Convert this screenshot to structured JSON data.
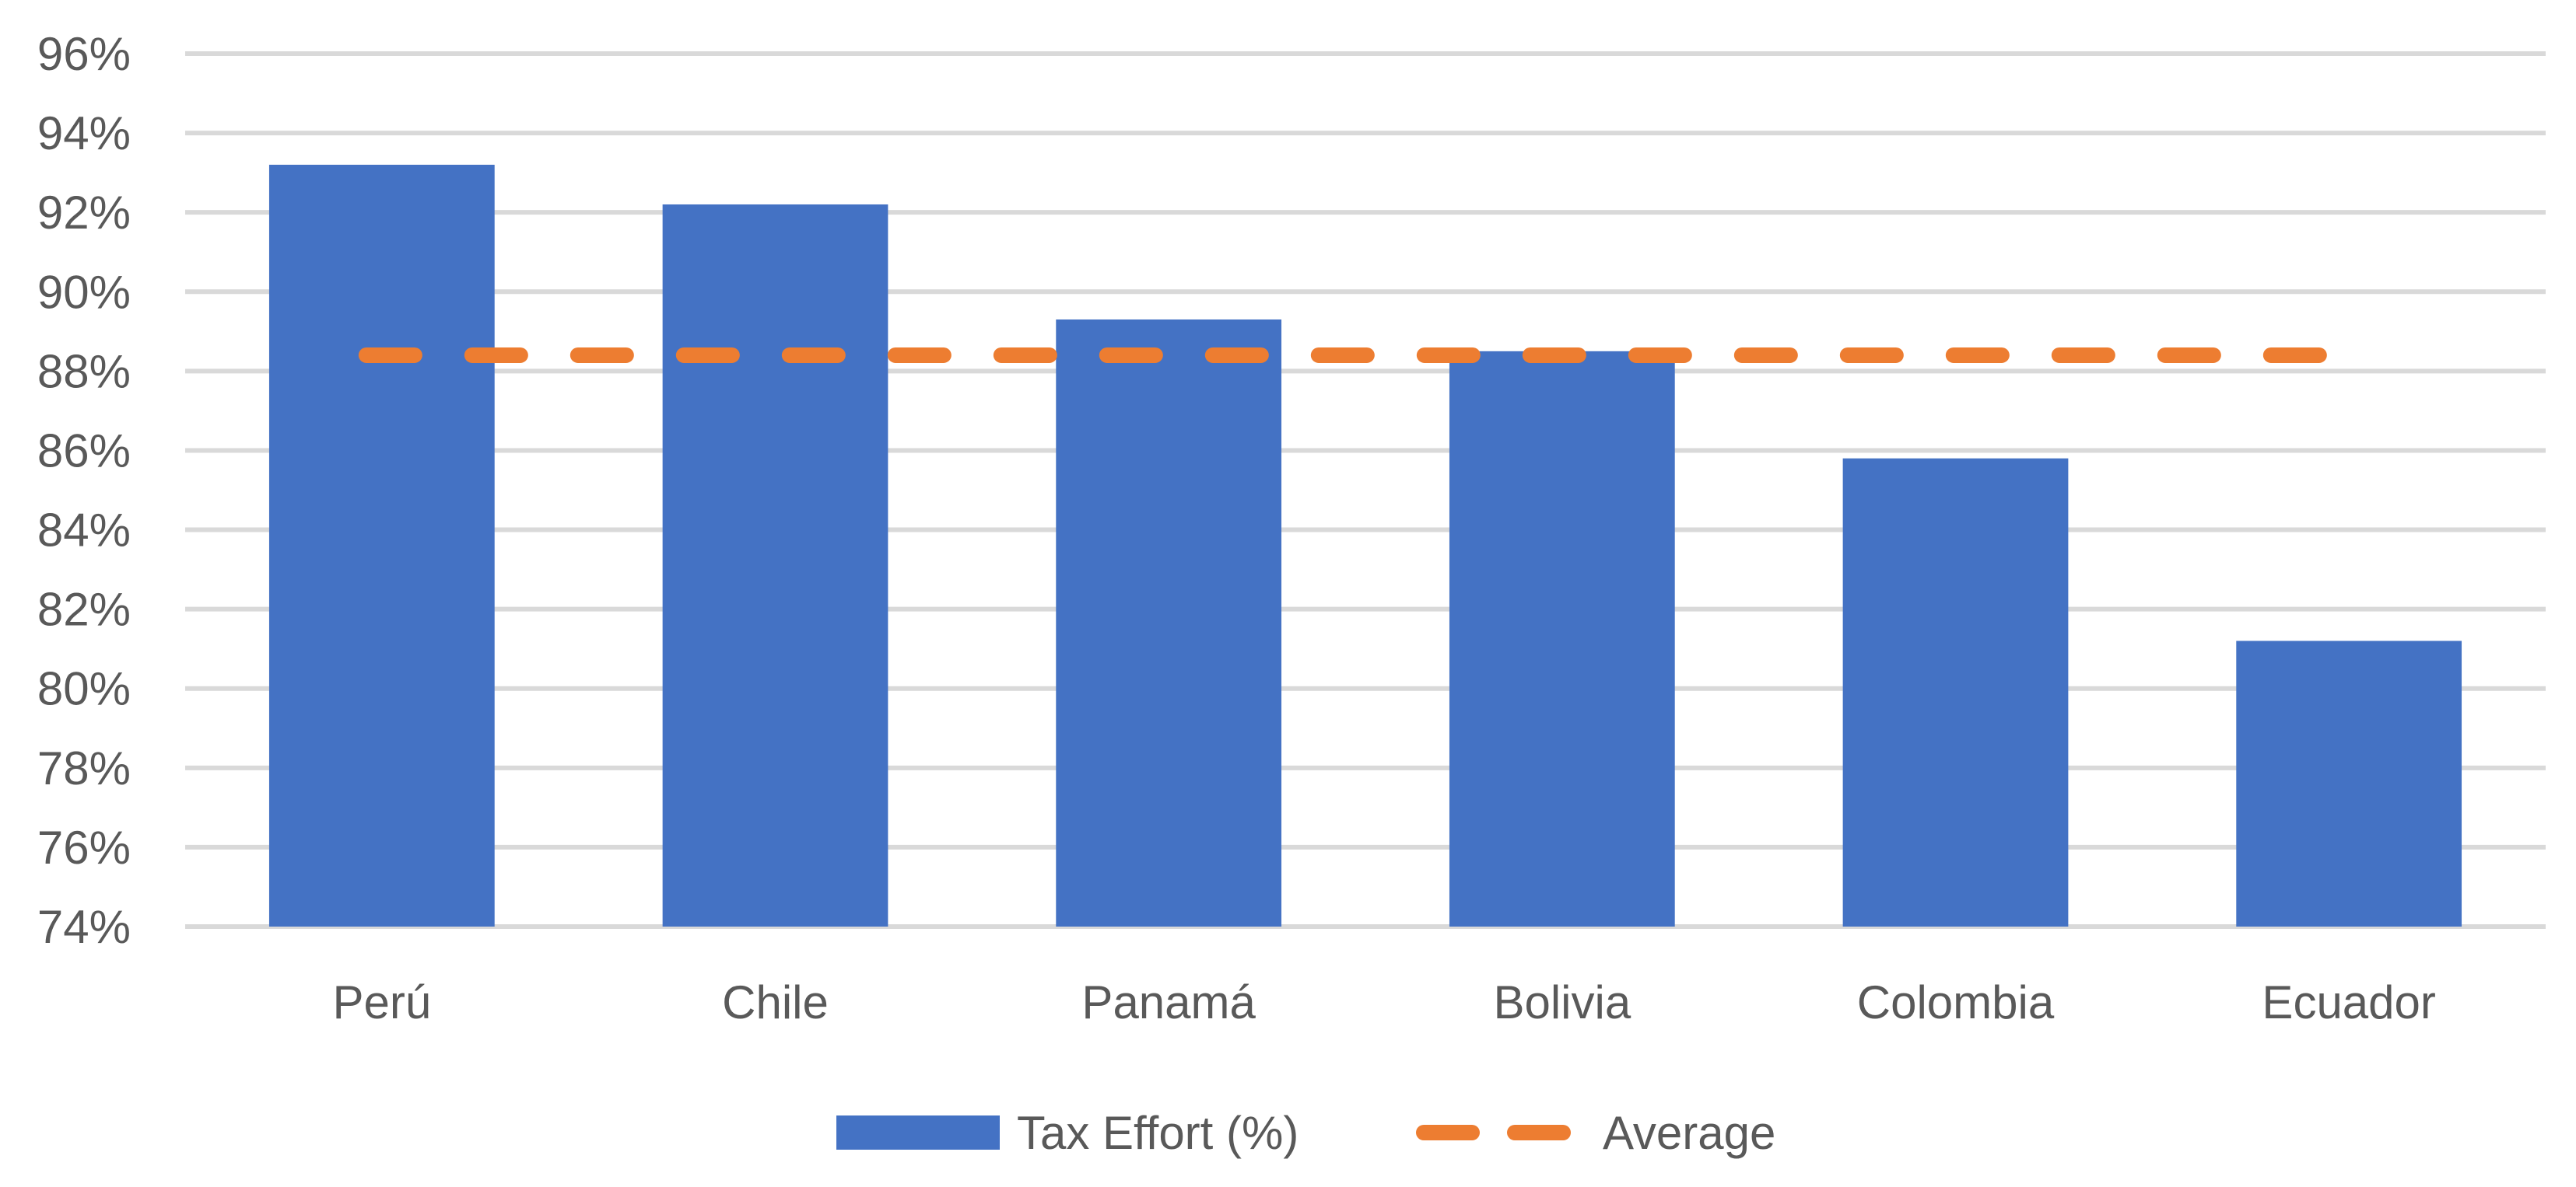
{
  "chart_data": {
    "type": "bar",
    "title": "",
    "xlabel": "",
    "ylabel": "",
    "categories": [
      "Perú",
      "Chile",
      "Panamá",
      "Bolivia",
      "Colombia",
      "Ecuador"
    ],
    "series": [
      {
        "name": "Tax Effort (%)",
        "type": "bar",
        "color": "#4472C4",
        "values": [
          93.2,
          92.2,
          89.3,
          88.5,
          85.8,
          81.2
        ]
      },
      {
        "name": "Average",
        "type": "line",
        "style": "dashed",
        "color": "#ED7D31",
        "value": 88.4
      }
    ],
    "ylim": [
      74,
      96
    ],
    "yticks": [
      74,
      76,
      78,
      80,
      82,
      84,
      86,
      88,
      90,
      92,
      94,
      96
    ],
    "ytick_labels": [
      "74%",
      "76%",
      "78%",
      "80%",
      "82%",
      "84%",
      "86%",
      "88%",
      "90%",
      "92%",
      "94%",
      "96%"
    ],
    "grid": true,
    "gridline_color": "#D9D9D9",
    "legend_position": "bottom-center",
    "legend": [
      {
        "label": "Tax Effort (%)",
        "marker": "bar",
        "color": "#4472C4"
      },
      {
        "label": "Average",
        "marker": "dashed-line",
        "color": "#ED7D31"
      }
    ]
  }
}
